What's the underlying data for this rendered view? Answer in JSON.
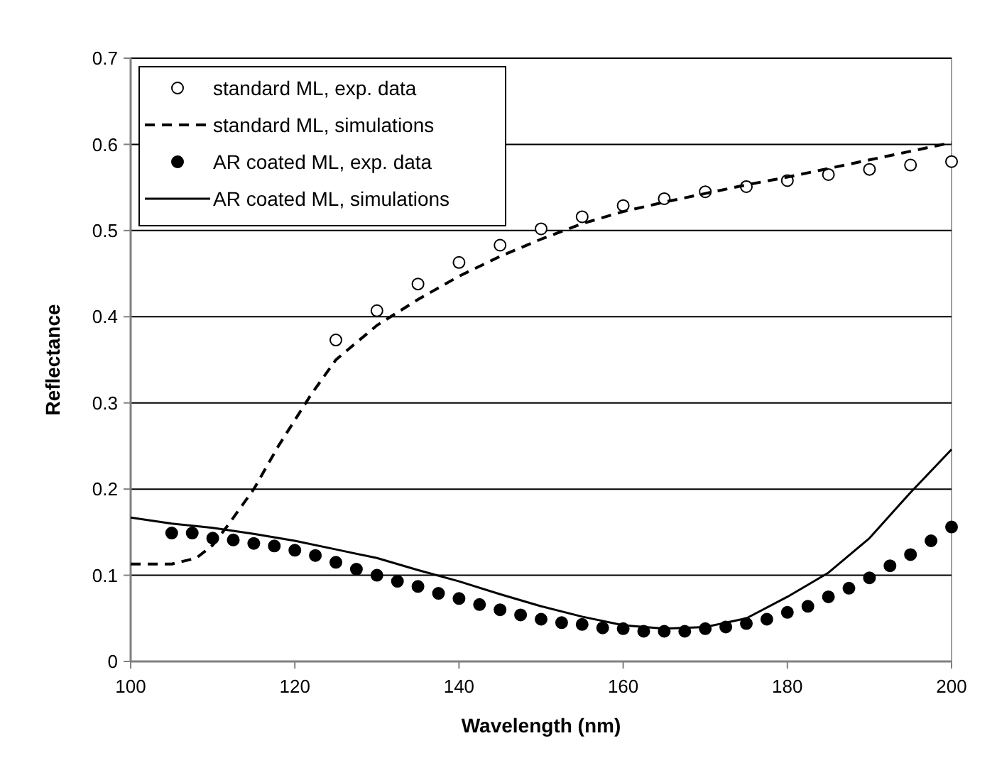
{
  "chart_data": {
    "type": "scatter",
    "xlabel": "Wavelength (nm)",
    "ylabel": "Reflectance",
    "xlim": [
      100,
      200
    ],
    "xticks": [
      100,
      120,
      140,
      160,
      180,
      200
    ],
    "ylim": [
      0,
      0.7
    ],
    "yticks": [
      {
        "value": 0,
        "label": "0"
      },
      0.1,
      0.2,
      0.3,
      0.4,
      0.5,
      0.6,
      0.7
    ],
    "grid": "y",
    "legend": "top left",
    "series": [
      {
        "name": "standard ML, exp. data",
        "marker": "circle",
        "color": "#ffffff",
        "x": [
          125,
          130,
          135,
          140,
          145,
          150,
          155,
          160,
          165,
          170,
          175,
          180,
          185,
          190,
          195,
          200
        ],
        "values": [
          0.373,
          0.407,
          0.438,
          0.463,
          0.483,
          0.502,
          0.516,
          0.529,
          0.537,
          0.545,
          0.551,
          0.558,
          0.565,
          0.571,
          0.576,
          0.58
        ]
      },
      {
        "name": "standard ML, simulations",
        "type": "line",
        "line_style": "dashed",
        "marker": "none",
        "color": "#000000",
        "x": [
          100,
          105,
          108,
          110,
          112,
          115,
          118,
          120,
          122,
          125,
          130,
          135,
          140,
          145,
          150,
          155,
          160,
          165,
          170,
          175,
          180,
          185,
          190,
          195,
          200
        ],
        "values": [
          0.113,
          0.113,
          0.12,
          0.135,
          0.16,
          0.2,
          0.25,
          0.28,
          0.31,
          0.35,
          0.39,
          0.42,
          0.447,
          0.47,
          0.49,
          0.508,
          0.522,
          0.533,
          0.543,
          0.553,
          0.562,
          0.572,
          0.582,
          0.592,
          0.602
        ]
      },
      {
        "name": "AR coated ML, exp. data",
        "marker": "circle",
        "color": "#000000",
        "x": [
          105,
          107.5,
          110,
          112.5,
          115,
          117.5,
          120,
          122.5,
          125,
          127.5,
          130,
          132.5,
          135,
          137.5,
          140,
          142.5,
          145,
          147.5,
          150,
          152.5,
          155,
          157.5,
          160,
          162.5,
          165,
          167.5,
          170,
          172.5,
          175,
          177.5,
          180,
          182.5,
          185,
          187.5,
          190,
          192.5,
          195,
          197.5,
          200
        ],
        "values": [
          0.149,
          0.149,
          0.143,
          0.141,
          0.137,
          0.134,
          0.129,
          0.123,
          0.115,
          0.107,
          0.1,
          0.093,
          0.087,
          0.079,
          0.073,
          0.066,
          0.06,
          0.054,
          0.049,
          0.045,
          0.043,
          0.039,
          0.038,
          0.035,
          0.035,
          0.035,
          0.038,
          0.04,
          0.044,
          0.049,
          0.057,
          0.064,
          0.075,
          0.085,
          0.097,
          0.111,
          0.124,
          0.14,
          0.156
        ]
      },
      {
        "name": "AR coated ML, simulations",
        "type": "line",
        "line_style": "solid",
        "marker": "none",
        "color": "#000000",
        "x": [
          100,
          105,
          110,
          115,
          120,
          125,
          130,
          135,
          140,
          145,
          150,
          155,
          160,
          165,
          170,
          175,
          180,
          185,
          190,
          195,
          200
        ],
        "values": [
          0.167,
          0.16,
          0.155,
          0.148,
          0.14,
          0.13,
          0.12,
          0.106,
          0.093,
          0.078,
          0.064,
          0.052,
          0.042,
          0.038,
          0.04,
          0.05,
          0.075,
          0.103,
          0.143,
          0.196,
          0.246
        ]
      }
    ]
  }
}
